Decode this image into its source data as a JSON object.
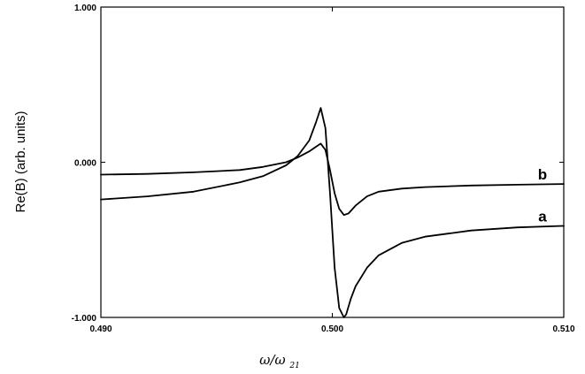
{
  "chart_data": {
    "type": "line",
    "xlabel": "ω/ω21",
    "xlabel_main": "ω/ω",
    "xlabel_sub": "21",
    "ylabel": "Re(B) (arb. units)",
    "xlim": [
      0.49,
      0.51
    ],
    "ylim": [
      -1.0,
      1.0
    ],
    "x_ticks": [
      0.49,
      0.5,
      0.51
    ],
    "x_tick_labels": [
      "0.490",
      "0.500",
      "0.510"
    ],
    "y_ticks": [
      -1.0,
      0.0,
      1.0
    ],
    "y_tick_labels": [
      "-1.000",
      "0.000",
      "1.000"
    ],
    "grid": false,
    "legend": "none",
    "series": [
      {
        "name": "a",
        "x": [
          0.49,
          0.492,
          0.494,
          0.496,
          0.497,
          0.498,
          0.4985,
          0.499,
          0.4993,
          0.4995,
          0.4997,
          0.4999,
          0.5001,
          0.5003,
          0.5005,
          0.5006,
          0.5008,
          0.501,
          0.5015,
          0.502,
          0.503,
          0.504,
          0.505,
          0.506,
          0.508,
          0.51
        ],
        "y": [
          -0.24,
          -0.22,
          -0.19,
          -0.13,
          -0.09,
          -0.02,
          0.04,
          0.14,
          0.26,
          0.35,
          0.22,
          -0.2,
          -0.68,
          -0.94,
          -1.0,
          -0.98,
          -0.88,
          -0.8,
          -0.68,
          -0.6,
          -0.52,
          -0.48,
          -0.46,
          -0.44,
          -0.42,
          -0.41
        ]
      },
      {
        "name": "b",
        "x": [
          0.49,
          0.492,
          0.494,
          0.496,
          0.497,
          0.498,
          0.4985,
          0.499,
          0.4993,
          0.4995,
          0.4997,
          0.4999,
          0.5001,
          0.5003,
          0.5005,
          0.5007,
          0.501,
          0.5015,
          0.502,
          0.503,
          0.504,
          0.506,
          0.508,
          0.51
        ],
        "y": [
          -0.08,
          -0.075,
          -0.065,
          -0.05,
          -0.03,
          0.0,
          0.03,
          0.07,
          0.1,
          0.12,
          0.08,
          -0.05,
          -0.2,
          -0.3,
          -0.34,
          -0.33,
          -0.28,
          -0.22,
          -0.19,
          -0.17,
          -0.16,
          -0.15,
          -0.145,
          -0.14
        ]
      }
    ]
  }
}
